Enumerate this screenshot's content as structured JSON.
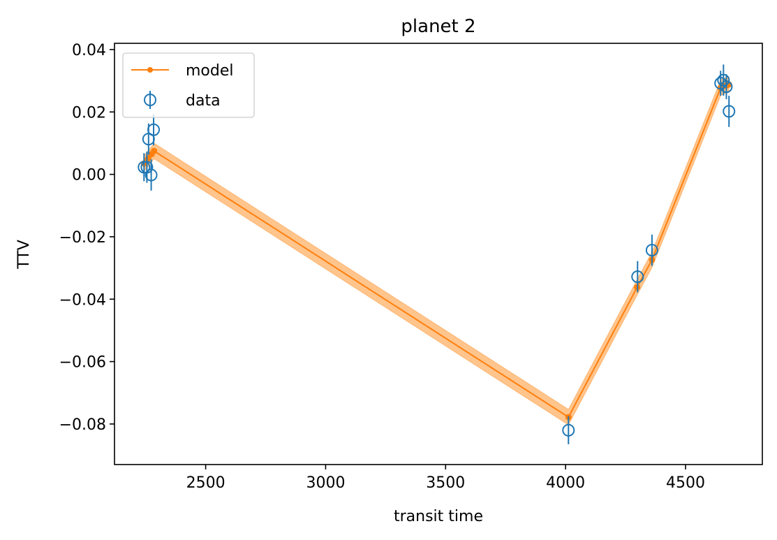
{
  "chart_data": {
    "type": "scatter",
    "title": "planet 2",
    "xlabel": "transit time",
    "ylabel": "TTV",
    "xlim": [
      2120,
      4820
    ],
    "ylim": [
      -0.093,
      0.042
    ],
    "xticks": [
      2500,
      3000,
      3500,
      4000,
      4500
    ],
    "xtick_labels": [
      "2500",
      "3000",
      "3500",
      "4000",
      "4500"
    ],
    "yticks": [
      0.04,
      0.02,
      0.0,
      -0.02,
      -0.04,
      -0.06,
      -0.08
    ],
    "ytick_labels": [
      "0.04",
      "0.02",
      "0.00",
      "−0.02",
      "−0.04",
      "−0.06",
      "−0.08"
    ],
    "grid": false,
    "legend": "upper left",
    "series": [
      {
        "name": "model",
        "kind": "line",
        "color": "#ff7f0e",
        "band_color": "#ffbb78",
        "x": [
          2243,
          2255,
          2261,
          2275,
          2285,
          4012,
          4298,
          4360,
          4646,
          4658,
          4670,
          4681
        ],
        "y": [
          0.0035,
          0.0045,
          0.0052,
          0.0065,
          0.0075,
          -0.0778,
          -0.0362,
          -0.0274,
          0.0277,
          0.0283,
          0.0285,
          0.0288
        ],
        "band_halfwidth": 0.0025
      },
      {
        "name": "data",
        "kind": "errorbar",
        "color": "#1f77b4",
        "x": [
          2243,
          2255,
          2262,
          2273,
          2283,
          4012,
          4300,
          4360,
          4646,
          4658,
          4670,
          4681
        ],
        "y": [
          0.0023,
          0.0023,
          0.0113,
          -0.0002,
          0.0143,
          -0.082,
          -0.0328,
          -0.0243,
          0.0292,
          0.0302,
          0.0281,
          0.0202
        ],
        "yerr": [
          0.0045,
          0.005,
          0.005,
          0.005,
          0.005,
          0.0045,
          0.005,
          0.005,
          0.004,
          0.005,
          0.004,
          0.005
        ]
      }
    ]
  }
}
